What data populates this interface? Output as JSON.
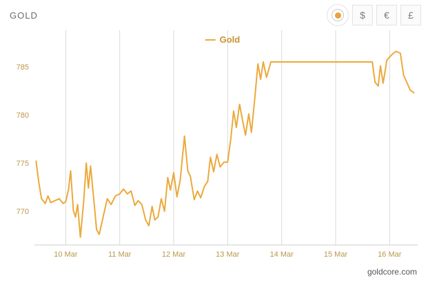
{
  "header": {
    "title": "GOLD"
  },
  "currency_toggle": {
    "radio_selected": true,
    "options": [
      {
        "label": "$"
      },
      {
        "label": "€"
      },
      {
        "label": "£"
      }
    ]
  },
  "legend": {
    "label": "Gold"
  },
  "footer": {
    "source": "goldcore.com"
  },
  "chart_data": {
    "type": "line",
    "title": "",
    "xlabel": "",
    "ylabel": "",
    "color": "#eba93b",
    "grid_color": "#d9d9d9",
    "tick_color": "#b9984a",
    "legend_position": "top-center",
    "grid": "vertical-only",
    "xlim": [
      9.42,
      16.52
    ],
    "ylim": [
      766.5,
      788.5
    ],
    "xticks": [
      {
        "value": 10,
        "label": "10 Mar"
      },
      {
        "value": 11,
        "label": "11 Mar"
      },
      {
        "value": 12,
        "label": "12 Mar"
      },
      {
        "value": 13,
        "label": "13 Mar"
      },
      {
        "value": 14,
        "label": "14 Mar"
      },
      {
        "value": 15,
        "label": "15 Mar"
      },
      {
        "value": 16,
        "label": "16 Mar"
      }
    ],
    "yticks": [
      {
        "value": 770,
        "label": "770"
      },
      {
        "value": 775,
        "label": "775"
      },
      {
        "value": 780,
        "label": "780"
      },
      {
        "value": 785,
        "label": "785"
      }
    ],
    "series": [
      {
        "name": "Gold",
        "points": [
          [
            9.45,
            775.2
          ],
          [
            9.5,
            773.0
          ],
          [
            9.55,
            771.3
          ],
          [
            9.62,
            770.8
          ],
          [
            9.67,
            771.6
          ],
          [
            9.72,
            770.9
          ],
          [
            9.8,
            771.1
          ],
          [
            9.88,
            771.3
          ],
          [
            9.95,
            770.8
          ],
          [
            10.0,
            771.0
          ],
          [
            10.05,
            772.2
          ],
          [
            10.09,
            774.2
          ],
          [
            10.14,
            770.1
          ],
          [
            10.18,
            769.4
          ],
          [
            10.22,
            770.7
          ],
          [
            10.27,
            767.3
          ],
          [
            10.33,
            770.9
          ],
          [
            10.38,
            775.0
          ],
          [
            10.42,
            772.4
          ],
          [
            10.46,
            774.7
          ],
          [
            10.52,
            771.2
          ],
          [
            10.57,
            768.1
          ],
          [
            10.62,
            767.6
          ],
          [
            10.7,
            769.6
          ],
          [
            10.77,
            771.3
          ],
          [
            10.84,
            770.7
          ],
          [
            10.92,
            771.6
          ],
          [
            11.0,
            771.8
          ],
          [
            11.07,
            772.3
          ],
          [
            11.14,
            771.8
          ],
          [
            11.21,
            772.1
          ],
          [
            11.28,
            770.6
          ],
          [
            11.34,
            771.1
          ],
          [
            11.41,
            770.7
          ],
          [
            11.48,
            769.1
          ],
          [
            11.54,
            768.5
          ],
          [
            11.6,
            770.5
          ],
          [
            11.65,
            769.1
          ],
          [
            11.71,
            769.4
          ],
          [
            11.77,
            771.3
          ],
          [
            11.83,
            770.0
          ],
          [
            11.89,
            773.5
          ],
          [
            11.94,
            772.2
          ],
          [
            12.0,
            774.0
          ],
          [
            12.06,
            771.5
          ],
          [
            12.12,
            773.2
          ],
          [
            12.2,
            777.8
          ],
          [
            12.26,
            774.2
          ],
          [
            12.31,
            773.6
          ],
          [
            12.38,
            771.2
          ],
          [
            12.44,
            772.1
          ],
          [
            12.5,
            771.4
          ],
          [
            12.57,
            772.6
          ],
          [
            12.63,
            773.1
          ],
          [
            12.68,
            775.6
          ],
          [
            12.74,
            774.1
          ],
          [
            12.8,
            775.9
          ],
          [
            12.86,
            774.6
          ],
          [
            12.93,
            775.1
          ],
          [
            13.0,
            775.1
          ],
          [
            13.06,
            777.6
          ],
          [
            13.11,
            780.4
          ],
          [
            13.16,
            778.7
          ],
          [
            13.22,
            781.1
          ],
          [
            13.28,
            779.3
          ],
          [
            13.33,
            777.9
          ],
          [
            13.39,
            780.1
          ],
          [
            13.44,
            778.2
          ],
          [
            13.5,
            781.6
          ],
          [
            13.56,
            785.3
          ],
          [
            13.61,
            783.7
          ],
          [
            13.66,
            785.5
          ],
          [
            13.72,
            783.9
          ],
          [
            13.8,
            785.5
          ],
          [
            14.0,
            785.5
          ],
          [
            15.0,
            785.5
          ],
          [
            15.68,
            785.5
          ],
          [
            15.73,
            783.4
          ],
          [
            15.79,
            783.0
          ],
          [
            15.83,
            785.1
          ],
          [
            15.88,
            783.3
          ],
          [
            15.95,
            785.7
          ],
          [
            16.05,
            786.3
          ],
          [
            16.12,
            786.6
          ],
          [
            16.2,
            786.4
          ],
          [
            16.26,
            784.1
          ],
          [
            16.31,
            783.5
          ],
          [
            16.38,
            782.6
          ],
          [
            16.45,
            782.3
          ]
        ]
      }
    ]
  }
}
